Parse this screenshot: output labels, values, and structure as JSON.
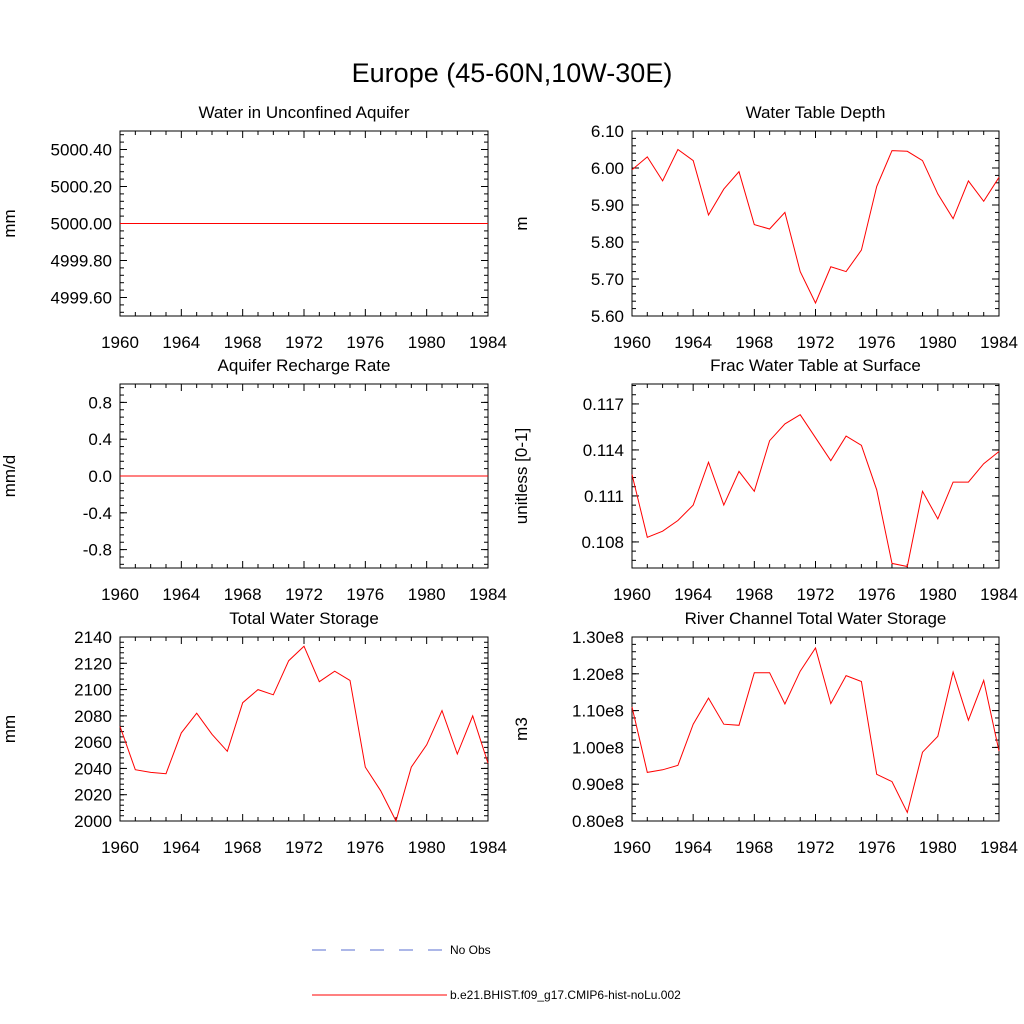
{
  "figure_title": "Europe (45-60N,10W-30E)",
  "colors": {
    "model": "#ff0000",
    "obs": "#5a6fd0",
    "axis": "#000000"
  },
  "legend": {
    "obs_label": "No Obs",
    "model_label": "b.e21.BHIST.f09_g17.CMIP6-hist-noLu.002"
  },
  "chart_data": [
    {
      "type": "line",
      "title": "Water in Unconfined Aquifer",
      "ylabel": "mm",
      "xlim": [
        1960,
        1984
      ],
      "ylim": [
        4999.5,
        5000.5
      ],
      "xticks": [
        1960,
        1964,
        1968,
        1972,
        1976,
        1980,
        1984
      ],
      "xtick_labels": [
        "1960",
        "1964",
        "1968",
        "1972",
        "1976",
        "1980",
        "1984"
      ],
      "yticks": [
        4999.6,
        4999.8,
        5000.0,
        5000.2,
        5000.4
      ],
      "ytick_labels": [
        "4999.60",
        "4999.80",
        "5000.00",
        "5000.20",
        "5000.40"
      ],
      "series": [
        {
          "name": "b.e21.BHIST.f09_g17.CMIP6-hist-noLu.002",
          "x": [
            1960,
            1961,
            1962,
            1963,
            1964,
            1965,
            1966,
            1967,
            1968,
            1969,
            1970,
            1971,
            1972,
            1973,
            1974,
            1975,
            1976,
            1977,
            1978,
            1979,
            1980,
            1981,
            1982,
            1983,
            1984
          ],
          "y": [
            5000,
            5000,
            5000,
            5000,
            5000,
            5000,
            5000,
            5000,
            5000,
            5000,
            5000,
            5000,
            5000,
            5000,
            5000,
            5000,
            5000,
            5000,
            5000,
            5000,
            5000,
            5000,
            5000,
            5000,
            5000
          ]
        }
      ]
    },
    {
      "type": "line",
      "title": "Water Table Depth",
      "ylabel": "m",
      "xlim": [
        1960,
        1984
      ],
      "ylim": [
        5.6,
        6.1
      ],
      "xticks": [
        1960,
        1964,
        1968,
        1972,
        1976,
        1980,
        1984
      ],
      "xtick_labels": [
        "1960",
        "1964",
        "1968",
        "1972",
        "1976",
        "1980",
        "1984"
      ],
      "yticks": [
        5.6,
        5.7,
        5.8,
        5.9,
        6.0,
        6.1
      ],
      "ytick_labels": [
        "5.60",
        "5.70",
        "5.80",
        "5.90",
        "6.00",
        "6.10"
      ],
      "series": [
        {
          "name": "b.e21.BHIST.f09_g17.CMIP6-hist-noLu.002",
          "x": [
            1960,
            1961,
            1962,
            1963,
            1964,
            1965,
            1966,
            1967,
            1968,
            1969,
            1970,
            1971,
            1972,
            1973,
            1974,
            1975,
            1976,
            1977,
            1978,
            1979,
            1980,
            1981,
            1982,
            1983,
            1984
          ],
          "y": [
            5.995,
            6.03,
            5.965,
            6.05,
            6.02,
            5.873,
            5.943,
            5.99,
            5.847,
            5.835,
            5.88,
            5.72,
            5.635,
            5.733,
            5.72,
            5.778,
            5.95,
            6.047,
            6.045,
            6.02,
            5.93,
            5.863,
            5.965,
            5.91,
            5.975
          ]
        }
      ]
    },
    {
      "type": "line",
      "title": "Aquifer Recharge Rate",
      "ylabel": "mm/d",
      "xlim": [
        1960,
        1984
      ],
      "ylim": [
        -1.0,
        1.0
      ],
      "xticks": [
        1960,
        1964,
        1968,
        1972,
        1976,
        1980,
        1984
      ],
      "xtick_labels": [
        "1960",
        "1964",
        "1968",
        "1972",
        "1976",
        "1980",
        "1984"
      ],
      "yticks": [
        -0.8,
        -0.4,
        0.0,
        0.4,
        0.8
      ],
      "ytick_labels": [
        "-0.8",
        "-0.4",
        "0.0",
        "0.4",
        "0.8"
      ],
      "series": [
        {
          "name": "b.e21.BHIST.f09_g17.CMIP6-hist-noLu.002",
          "x": [
            1960,
            1961,
            1962,
            1963,
            1964,
            1965,
            1966,
            1967,
            1968,
            1969,
            1970,
            1971,
            1972,
            1973,
            1974,
            1975,
            1976,
            1977,
            1978,
            1979,
            1980,
            1981,
            1982,
            1983,
            1984
          ],
          "y": [
            0,
            0,
            0,
            0,
            0,
            0,
            0,
            0,
            0,
            0,
            0,
            0,
            0,
            0,
            0,
            0,
            0,
            0,
            0,
            0,
            0,
            0,
            0,
            0,
            0
          ]
        }
      ]
    },
    {
      "type": "line",
      "title": "Frac Water Table at Surface",
      "ylabel": "unitless [0-1]",
      "xlim": [
        1960,
        1984
      ],
      "ylim": [
        0.1063,
        0.1183
      ],
      "xticks": [
        1960,
        1964,
        1968,
        1972,
        1976,
        1980,
        1984
      ],
      "xtick_labels": [
        "1960",
        "1964",
        "1968",
        "1972",
        "1976",
        "1980",
        "1984"
      ],
      "yticks": [
        0.108,
        0.111,
        0.114,
        0.117
      ],
      "ytick_labels": [
        "0.108",
        "0.111",
        "0.114",
        "0.117"
      ],
      "series": [
        {
          "name": "b.e21.BHIST.f09_g17.CMIP6-hist-noLu.002",
          "x": [
            1960,
            1961,
            1962,
            1963,
            1964,
            1965,
            1966,
            1967,
            1968,
            1969,
            1970,
            1971,
            1972,
            1973,
            1974,
            1975,
            1976,
            1977,
            1978,
            1979,
            1980,
            1981,
            1982,
            1983,
            1984
          ],
          "y": [
            0.1124,
            0.1083,
            0.1087,
            0.1094,
            0.1104,
            0.1132,
            0.1104,
            0.1126,
            0.1113,
            0.1146,
            0.1157,
            0.1163,
            0.1148,
            0.1133,
            0.1149,
            0.1143,
            0.1114,
            0.1066,
            0.1064,
            0.1113,
            0.1095,
            0.1119,
            0.1119,
            0.1131,
            0.1139
          ]
        }
      ]
    },
    {
      "type": "line",
      "title": "Total Water Storage",
      "ylabel": "mm",
      "xlim": [
        1960,
        1984
      ],
      "ylim": [
        2000,
        2140
      ],
      "xticks": [
        1960,
        1964,
        1968,
        1972,
        1976,
        1980,
        1984
      ],
      "xtick_labels": [
        "1960",
        "1964",
        "1968",
        "1972",
        "1976",
        "1980",
        "1984"
      ],
      "yticks": [
        2000,
        2020,
        2040,
        2060,
        2080,
        2100,
        2120,
        2140
      ],
      "ytick_labels": [
        "2000",
        "2020",
        "2040",
        "2060",
        "2080",
        "2100",
        "2120",
        "2140"
      ],
      "series": [
        {
          "name": "b.e21.BHIST.f09_g17.CMIP6-hist-noLu.002",
          "x": [
            1960,
            1961,
            1962,
            1963,
            1964,
            1965,
            1966,
            1967,
            1968,
            1969,
            1970,
            1971,
            1972,
            1973,
            1974,
            1975,
            1976,
            1977,
            1978,
            1979,
            1980,
            1981,
            1982,
            1983,
            1984
          ],
          "y": [
            2072,
            2039,
            2037,
            2036,
            2067,
            2082,
            2066,
            2053,
            2090,
            2100,
            2096,
            2122,
            2133,
            2106,
            2114,
            2107,
            2041,
            2023,
            2000,
            2041,
            2058,
            2084,
            2051,
            2080,
            2044
          ]
        }
      ]
    },
    {
      "type": "line",
      "title": "River Channel Total Water Storage",
      "ylabel": "m3",
      "xlim": [
        1960,
        1984
      ],
      "ylim": [
        80000000,
        130000000
      ],
      "xticks": [
        1960,
        1964,
        1968,
        1972,
        1976,
        1980,
        1984
      ],
      "xtick_labels": [
        "1960",
        "1964",
        "1968",
        "1972",
        "1976",
        "1980",
        "1984"
      ],
      "yticks": [
        80000000,
        90000000,
        100000000,
        110000000,
        120000000,
        130000000
      ],
      "ytick_labels": [
        "0.80e8",
        "0.90e8",
        "1.00e8",
        "1.10e8",
        "1.20e8",
        "1.30e8"
      ],
      "series": [
        {
          "name": "b.e21.BHIST.f09_g17.CMIP6-hist-noLu.002",
          "x": [
            1960,
            1961,
            1962,
            1963,
            1964,
            1965,
            1966,
            1967,
            1968,
            1969,
            1970,
            1971,
            1972,
            1973,
            1974,
            1975,
            1976,
            1977,
            1978,
            1979,
            1980,
            1981,
            1982,
            1983,
            1984
          ],
          "y": [
            111000000,
            93200000,
            93900000,
            95100000,
            106300000,
            113400000,
            106300000,
            106000000,
            120300000,
            120300000,
            111800000,
            120700000,
            127000000,
            111900000,
            119500000,
            117900000,
            92700000,
            90700000,
            82300000,
            98700000,
            103000000,
            120500000,
            107400000,
            118200000,
            99000000
          ]
        }
      ]
    }
  ]
}
